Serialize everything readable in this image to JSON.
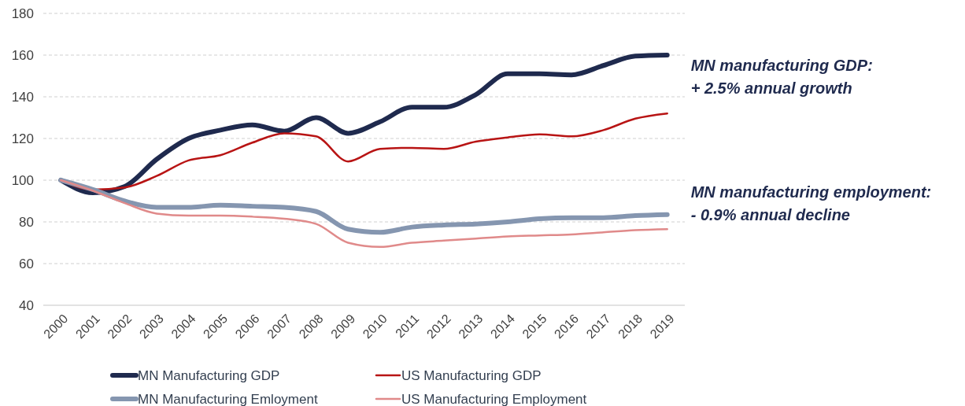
{
  "chart_data": {
    "type": "line",
    "categories": [
      "2000",
      "2001",
      "2002",
      "2003",
      "2004",
      "2005",
      "2006",
      "2007",
      "2008",
      "2009",
      "2010",
      "2011",
      "2012",
      "2013",
      "2014",
      "2015",
      "2016",
      "2017",
      "2018",
      "2019"
    ],
    "series": [
      {
        "name": "MN Manufacturing GDP",
        "color": "#1f2a4e",
        "values": [
          100,
          94,
          97,
          110,
          120,
          124,
          126.5,
          123.5,
          130,
          122.5,
          128,
          135,
          135,
          141,
          151,
          151,
          150.5,
          155,
          159.5,
          160
        ]
      },
      {
        "name": "US Manufacturing GDP",
        "color": "#b81414",
        "values": [
          100,
          95.5,
          96.5,
          102,
          109.5,
          112,
          118,
          122.5,
          121,
          109,
          115,
          115.5,
          115,
          118.5,
          120.5,
          122,
          121,
          124,
          129.5,
          132
        ]
      },
      {
        "name": "MN Manufacturing Emloyment",
        "color": "#8596b0",
        "values": [
          100,
          95.5,
          90,
          87,
          87,
          88,
          87.5,
          87,
          85,
          76.5,
          75,
          77.5,
          78.5,
          79,
          80,
          81.5,
          82,
          82,
          83,
          83.5
        ]
      },
      {
        "name": "US Manufacturing Employment",
        "color": "#e08a8a",
        "values": [
          100,
          95,
          89,
          84,
          83,
          83,
          82.5,
          81.5,
          79,
          70,
          68,
          70,
          71,
          72,
          73,
          73.5,
          74,
          75,
          76,
          76.5
        ]
      }
    ],
    "ylim": [
      40,
      180
    ],
    "yticks": [
      40,
      60,
      80,
      100,
      120,
      140,
      160,
      180
    ],
    "grid": "y",
    "legend": "bottom",
    "marker": "none",
    "line_style": "solid",
    "annotations": [
      {
        "text": "MN manufacturing GDP:\n+ 2.5% annual growth",
        "x": "2019",
        "y": 160
      },
      {
        "text": "MN manufacturing employment:\n- 0.9% annual decline",
        "x": "2019",
        "y": 83.5
      }
    ]
  }
}
